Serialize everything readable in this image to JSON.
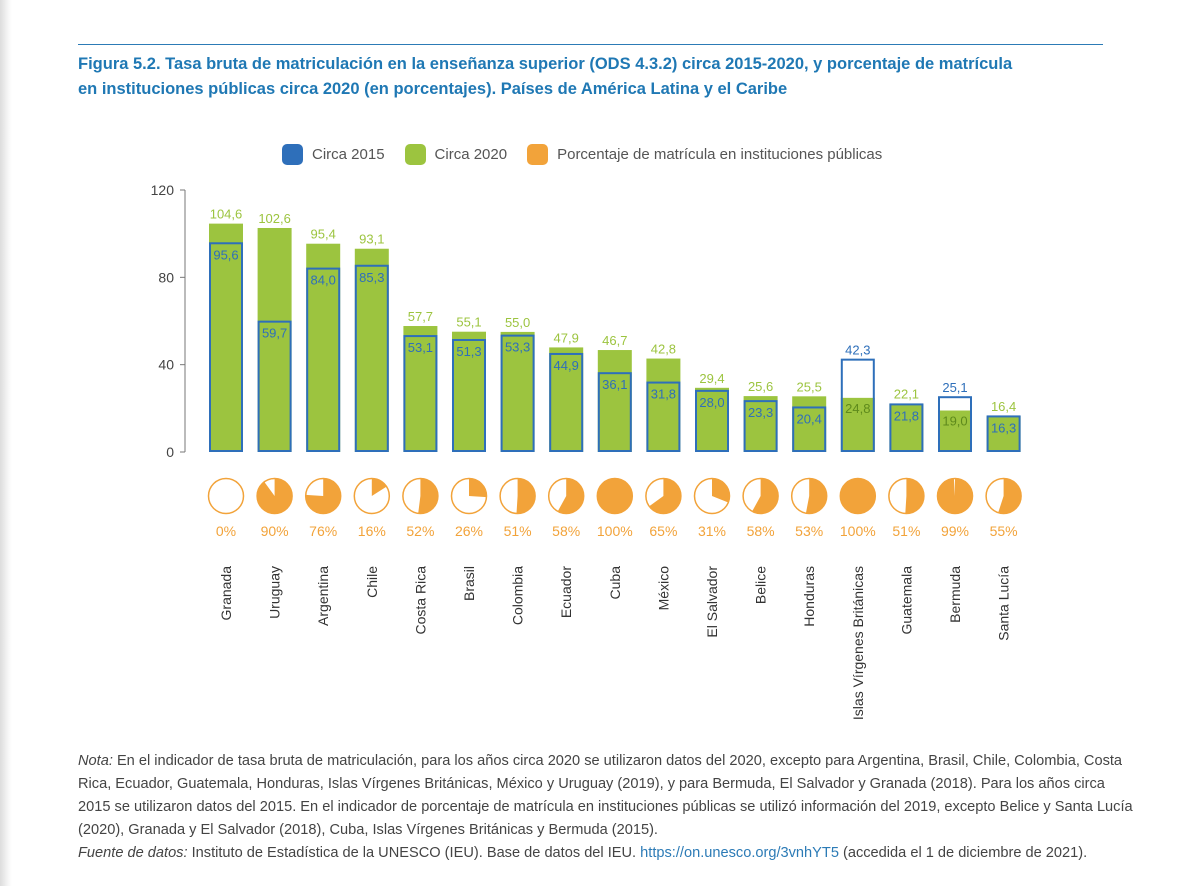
{
  "figure": {
    "title_line1": "Figura 5.2. Tasa bruta de matriculación en la enseñanza superior (ODS 4.3.2) circa 2015-2020, y porcentaje de matrícula",
    "title_line2": "en instituciones públicas circa 2020 (en porcentajes). Países de América Latina y el Caribe"
  },
  "legend": {
    "items": [
      {
        "label": "Circa 2015",
        "color": "#2e6fba",
        "kind": "outline"
      },
      {
        "label": "Circa 2020",
        "color": "#9cc43f",
        "kind": "fill"
      },
      {
        "label": "Porcentaje de matrícula en instituciones públicas",
        "color": "#f2a33a",
        "kind": "fill"
      }
    ]
  },
  "chart_data": {
    "type": "bar",
    "title": "Tasa bruta de matriculación en la enseñanza superior (ODS 4.3.2) circa 2015-2020, y porcentaje de matrícula en instituciones públicas circa 2020",
    "xlabel": "",
    "ylabel": "",
    "ylim": [
      0,
      120
    ],
    "yticks": [
      0,
      40,
      80,
      120
    ],
    "categories": [
      "Granada",
      "Uruguay",
      "Argentina",
      "Chile",
      "Costa Rica",
      "Brasil",
      "Colombia",
      "Ecuador",
      "Cuba",
      "México",
      "El Salvador",
      "Belice",
      "Honduras",
      "Islas Vírgenes Británicas",
      "Guatemala",
      "Bermuda",
      "Santa Lucía"
    ],
    "series": [
      {
        "name": "Circa 2015",
        "values": [
          95.6,
          59.7,
          84.0,
          85.3,
          53.1,
          51.3,
          53.3,
          44.9,
          36.1,
          31.8,
          28.0,
          23.3,
          20.4,
          42.3,
          21.8,
          25.1,
          16.3
        ],
        "labels": [
          "95,6",
          "59,7",
          "84,0",
          "85,3",
          "53,1",
          "51,3",
          "53,3",
          "44,9",
          "36,1",
          "31,8",
          "28,0",
          "23,3",
          "20,4",
          "42,3",
          "21,8",
          "25,1",
          "16,3"
        ]
      },
      {
        "name": "Circa 2020",
        "values": [
          104.6,
          102.6,
          95.4,
          93.1,
          57.7,
          55.1,
          55.0,
          47.9,
          46.7,
          42.8,
          29.4,
          25.6,
          25.5,
          24.8,
          22.1,
          19.0,
          16.4
        ],
        "labels": [
          "104,6",
          "102,6",
          "95,4",
          "93,1",
          "57,7",
          "55,1",
          "55,0",
          "47,9",
          "46,7",
          "42,8",
          "29,4",
          "25,6",
          "25,5",
          "24,8",
          "22,1",
          "19,0",
          "16,4"
        ]
      },
      {
        "name": "Porcentaje de matrícula en instituciones públicas",
        "values": [
          0,
          90,
          76,
          16,
          52,
          26,
          51,
          58,
          100,
          65,
          31,
          58,
          53,
          100,
          51,
          99,
          55
        ],
        "labels": [
          "0%",
          "90%",
          "76%",
          "16%",
          "52%",
          "26%",
          "51%",
          "58%",
          "100%",
          "65%",
          "31%",
          "58%",
          "53%",
          "100%",
          "51%",
          "99%",
          "55%"
        ]
      }
    ],
    "colors": {
      "c2015": "#2e6fba",
      "c2020": "#9cc43f",
      "public": "#f2a33a",
      "axis": "#666666"
    }
  },
  "notes": {
    "nota_label": "Nota:",
    "nota_text": " En el indicador de tasa bruta de matriculación, para los años circa 2020 se utilizaron datos del 2020, excepto para Argentina, Brasil, Chile, Colombia, Costa Rica, Ecuador, Guatemala, Honduras, Islas Vírgenes Británicas, México y Uruguay (2019), y para Bermuda, El Salvador y Granada (2018). Para los años circa 2015 se utilizaron datos del 2015. En el indicador de porcentaje de matrícula en instituciones públicas se utilizó información del 2019, excepto Belice y Santa Lucía (2020), Granada y El Salvador (2018), Cuba, Islas Vírgenes Británicas y Bermuda (2015).",
    "fuente_label": "Fuente de datos:",
    "fuente_text": " Instituto de Estadística de la UNESCO (IEU). Base de datos del IEU. ",
    "fuente_link": "https://on.unesco.org/3vnhYT5",
    "fuente_tail": " (accedida el 1 de diciembre de 2021)."
  }
}
